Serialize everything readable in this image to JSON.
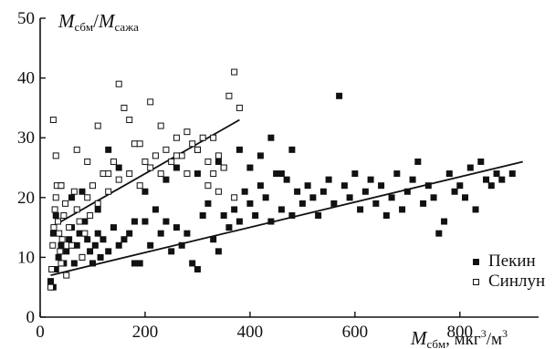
{
  "chart_data": {
    "type": "scatter",
    "xlim": [
      0,
      950
    ],
    "ylim": [
      0,
      50
    ],
    "xticks": [
      0,
      200,
      400,
      600,
      800
    ],
    "yticks": [
      0,
      10,
      20,
      30,
      40,
      50
    ],
    "ylabel": {
      "base": "M",
      "sub1": "сбм",
      "sep": "/",
      "base2": "M",
      "sub2": "сажа"
    },
    "xlabel": {
      "base": "M",
      "sub": "сбм",
      "unit_pre": ", мкг",
      "unit_sup1": "3",
      "unit_mid": "/м",
      "unit_sup2": "3"
    },
    "legend_position": "bottom-right",
    "series": [
      {
        "name": "Пекин",
        "marker": "filled-square",
        "color": "#111111",
        "points": [
          [
            20,
            6
          ],
          [
            25,
            5
          ],
          [
            30,
            8
          ],
          [
            35,
            10
          ],
          [
            40,
            12
          ],
          [
            45,
            9
          ],
          [
            50,
            11
          ],
          [
            55,
            13
          ],
          [
            60,
            15
          ],
          [
            65,
            9
          ],
          [
            70,
            12
          ],
          [
            75,
            14
          ],
          [
            80,
            10
          ],
          [
            85,
            16
          ],
          [
            90,
            13
          ],
          [
            95,
            11
          ],
          [
            100,
            9
          ],
          [
            105,
            12
          ],
          [
            110,
            14
          ],
          [
            115,
            10
          ],
          [
            120,
            13
          ],
          [
            130,
            11
          ],
          [
            140,
            15
          ],
          [
            150,
            12
          ],
          [
            160,
            13
          ],
          [
            170,
            14
          ],
          [
            180,
            9
          ],
          [
            190,
            9
          ],
          [
            200,
            16
          ],
          [
            210,
            12
          ],
          [
            220,
            18
          ],
          [
            230,
            14
          ],
          [
            240,
            16
          ],
          [
            250,
            11
          ],
          [
            260,
            15
          ],
          [
            270,
            12
          ],
          [
            280,
            14
          ],
          [
            290,
            9
          ],
          [
            300,
            8
          ],
          [
            310,
            17
          ],
          [
            320,
            19
          ],
          [
            330,
            13
          ],
          [
            340,
            11
          ],
          [
            350,
            17
          ],
          [
            360,
            15
          ],
          [
            370,
            18
          ],
          [
            380,
            16
          ],
          [
            390,
            21
          ],
          [
            400,
            19
          ],
          [
            410,
            17
          ],
          [
            420,
            22
          ],
          [
            430,
            20
          ],
          [
            440,
            16
          ],
          [
            450,
            24
          ],
          [
            460,
            18
          ],
          [
            470,
            23
          ],
          [
            480,
            17
          ],
          [
            490,
            21
          ],
          [
            500,
            19
          ],
          [
            510,
            22
          ],
          [
            520,
            20
          ],
          [
            530,
            17
          ],
          [
            540,
            21
          ],
          [
            550,
            23
          ],
          [
            560,
            19
          ],
          [
            570,
            37
          ],
          [
            580,
            22
          ],
          [
            590,
            20
          ],
          [
            600,
            24
          ],
          [
            610,
            18
          ],
          [
            620,
            21
          ],
          [
            630,
            23
          ],
          [
            640,
            19
          ],
          [
            650,
            22
          ],
          [
            660,
            17
          ],
          [
            670,
            20
          ],
          [
            680,
            24
          ],
          [
            690,
            18
          ],
          [
            700,
            21
          ],
          [
            710,
            23
          ],
          [
            720,
            26
          ],
          [
            730,
            19
          ],
          [
            740,
            22
          ],
          [
            750,
            20
          ],
          [
            760,
            14
          ],
          [
            770,
            16
          ],
          [
            780,
            24
          ],
          [
            790,
            21
          ],
          [
            800,
            22
          ],
          [
            810,
            20
          ],
          [
            820,
            25
          ],
          [
            830,
            18
          ],
          [
            840,
            26
          ],
          [
            850,
            23
          ],
          [
            860,
            22
          ],
          [
            870,
            24
          ],
          [
            880,
            23
          ],
          [
            900,
            24
          ],
          [
            25,
            14
          ],
          [
            30,
            17
          ],
          [
            40,
            22
          ],
          [
            60,
            20
          ],
          [
            80,
            21
          ],
          [
            110,
            18
          ],
          [
            130,
            28
          ],
          [
            150,
            25
          ],
          [
            180,
            16
          ],
          [
            200,
            21
          ],
          [
            240,
            23
          ],
          [
            260,
            25
          ],
          [
            300,
            24
          ],
          [
            340,
            26
          ],
          [
            380,
            28
          ],
          [
            400,
            25
          ],
          [
            420,
            27
          ],
          [
            440,
            30
          ],
          [
            460,
            24
          ],
          [
            480,
            28
          ]
        ]
      },
      {
        "name": "Синлун",
        "marker": "open-square",
        "color": "#111111",
        "points": [
          [
            20,
            5
          ],
          [
            22,
            8
          ],
          [
            24,
            12
          ],
          [
            26,
            15
          ],
          [
            28,
            18
          ],
          [
            30,
            20
          ],
          [
            32,
            22
          ],
          [
            34,
            16
          ],
          [
            36,
            14
          ],
          [
            38,
            11
          ],
          [
            40,
            9
          ],
          [
            42,
            13
          ],
          [
            45,
            17
          ],
          [
            48,
            19
          ],
          [
            50,
            7
          ],
          [
            55,
            15
          ],
          [
            60,
            12
          ],
          [
            65,
            21
          ],
          [
            70,
            18
          ],
          [
            75,
            16
          ],
          [
            80,
            10
          ],
          [
            85,
            14
          ],
          [
            90,
            20
          ],
          [
            95,
            17
          ],
          [
            100,
            22
          ],
          [
            110,
            19
          ],
          [
            120,
            24
          ],
          [
            130,
            21
          ],
          [
            140,
            26
          ],
          [
            150,
            23
          ],
          [
            160,
            35
          ],
          [
            170,
            24
          ],
          [
            180,
            29
          ],
          [
            190,
            22
          ],
          [
            200,
            26
          ],
          [
            210,
            25
          ],
          [
            220,
            27
          ],
          [
            230,
            24
          ],
          [
            240,
            28
          ],
          [
            250,
            26
          ],
          [
            260,
            30
          ],
          [
            270,
            27
          ],
          [
            280,
            31
          ],
          [
            290,
            29
          ],
          [
            300,
            28
          ],
          [
            310,
            30
          ],
          [
            320,
            26
          ],
          [
            330,
            24
          ],
          [
            340,
            21
          ],
          [
            350,
            25
          ],
          [
            360,
            37
          ],
          [
            370,
            41
          ],
          [
            380,
            35
          ],
          [
            25,
            33
          ],
          [
            30,
            27
          ],
          [
            40,
            22
          ],
          [
            70,
            28
          ],
          [
            90,
            26
          ],
          [
            110,
            32
          ],
          [
            130,
            24
          ],
          [
            150,
            39
          ],
          [
            170,
            33
          ],
          [
            190,
            29
          ],
          [
            210,
            36
          ],
          [
            230,
            32
          ],
          [
            280,
            24
          ],
          [
            300,
            28
          ],
          [
            330,
            30
          ],
          [
            350,
            25
          ],
          [
            370,
            20
          ],
          [
            340,
            27
          ],
          [
            320,
            22
          ],
          [
            260,
            27
          ]
        ]
      }
    ],
    "fit_lines": [
      {
        "series": "Пекин",
        "from": [
          20,
          7
        ],
        "to": [
          920,
          26
        ]
      },
      {
        "series": "Синлун",
        "from": [
          20,
          15
        ],
        "to": [
          380,
          33
        ]
      }
    ]
  },
  "legend": {
    "items": [
      "Пекин",
      "Синлун"
    ]
  }
}
